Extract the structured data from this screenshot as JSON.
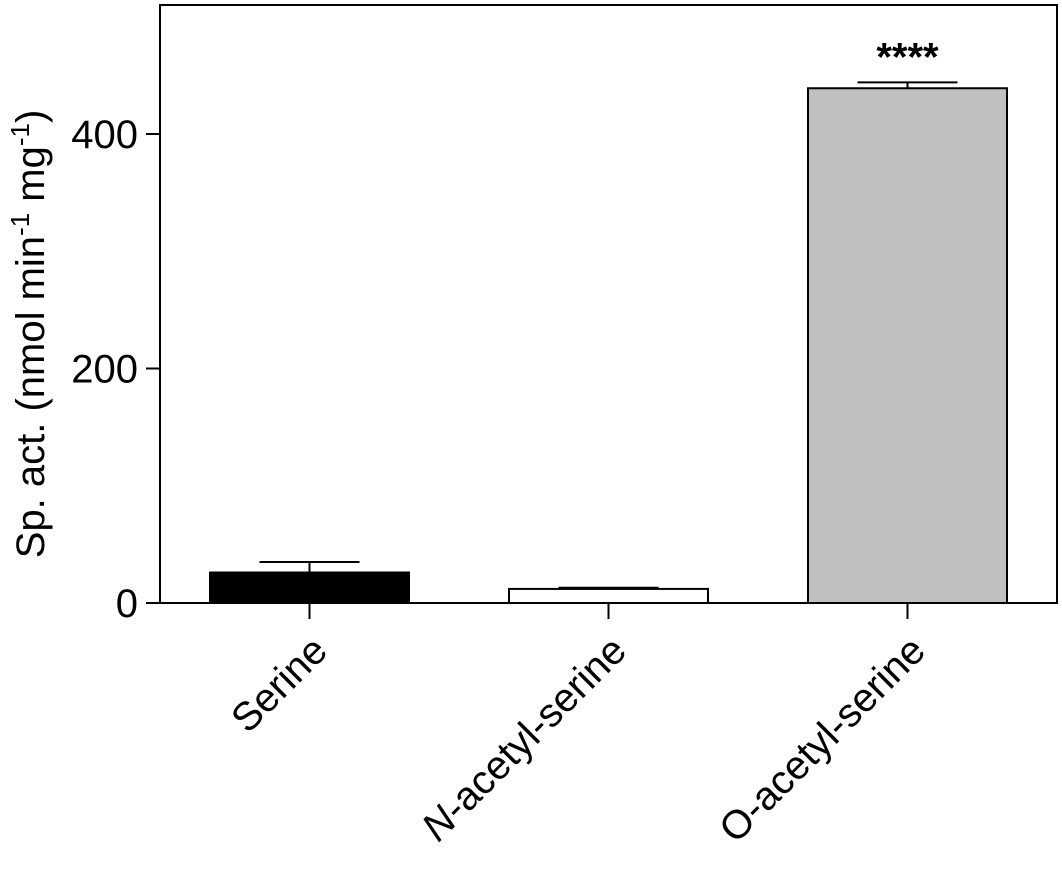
{
  "chart_data": {
    "type": "bar",
    "categories": [
      "Serine",
      "N-acetyl-serine",
      "O-acetyl-serine"
    ],
    "category_styles": [
      "plain",
      "italic-prefix",
      "plain"
    ],
    "values": [
      26,
      12,
      439
    ],
    "errors": [
      9,
      1,
      5
    ],
    "bar_colors": [
      "#000000",
      "#ffffff",
      "#c0c0c0"
    ],
    "annotations": [
      {
        "category": "O-acetyl-serine",
        "text": "****"
      }
    ],
    "title": "",
    "xlabel": "",
    "ylabel": {
      "parts": [
        "Sp. act. (nmol min",
        "-1",
        " mg",
        "-1",
        ")"
      ]
    },
    "yticks": [
      0,
      200,
      400
    ],
    "ylim": [
      0,
      510
    ],
    "grid": false
  }
}
